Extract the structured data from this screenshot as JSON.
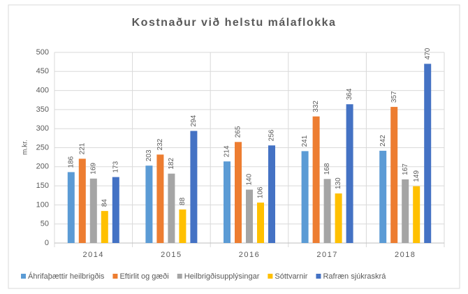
{
  "chart_data": {
    "type": "bar",
    "title": "Kostnaður við helstu málaflokka",
    "y_label": "m.kr.",
    "categories": [
      "2014",
      "2015",
      "2016",
      "2017",
      "2018"
    ],
    "series": [
      {
        "name": "Áhrifaþættir heilbrigðis",
        "color": "#5b9bd5",
        "values": [
          186,
          203,
          214,
          241,
          242
        ]
      },
      {
        "name": "Eftirlit og gæði",
        "color": "#ed7d31",
        "values": [
          221,
          232,
          265,
          332,
          357
        ]
      },
      {
        "name": "Heilbrigðisupplýsingar",
        "color": "#a5a5a5",
        "values": [
          169,
          182,
          140,
          168,
          167
        ]
      },
      {
        "name": "Sóttvarnir",
        "color": "#ffc000",
        "values": [
          84,
          88,
          106,
          130,
          149
        ]
      },
      {
        "name": "Rafræn sjúkraskrá",
        "color": "#4472c4",
        "values": [
          173,
          294,
          256,
          364,
          470
        ]
      }
    ],
    "ylim": [
      0,
      500
    ],
    "yticks": [
      0,
      50,
      100,
      150,
      200,
      250,
      300,
      350,
      400,
      450,
      500
    ],
    "grid": true,
    "legend": "bottom"
  }
}
